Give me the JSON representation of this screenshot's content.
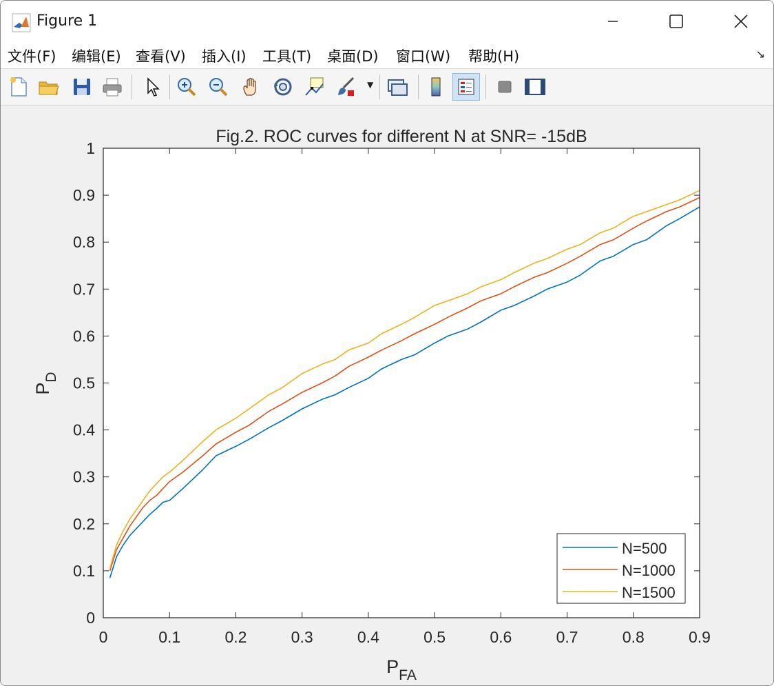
{
  "window": {
    "title": "Figure 1"
  },
  "menu": {
    "items": [
      "文件(F)",
      "编辑(E)",
      "查看(V)",
      "插入(I)",
      "工具(T)",
      "桌面(D)",
      "窗口(W)",
      "帮助(H)"
    ]
  },
  "toolbar": {
    "icons": [
      "new-file-icon",
      "open-folder-icon",
      "save-icon",
      "print-icon",
      "pointer-icon",
      "zoom-in-icon",
      "zoom-out-icon",
      "pan-hand-icon",
      "rotate-3d-icon",
      "data-cursor-icon",
      "brush-icon",
      "link-plot-icon",
      "colorbar-icon",
      "legend-icon",
      "hide-tools-icon",
      "show-tools-icon"
    ],
    "active": "legend-icon"
  },
  "chart_data": {
    "type": "line",
    "title": "Fig.2. ROC curves for different N at SNR= -15dB",
    "xlabel": {
      "main": "P",
      "sub": "FA"
    },
    "ylabel": {
      "main": "P",
      "sub": "D"
    },
    "xlim": [
      0,
      0.9
    ],
    "ylim": [
      0,
      1
    ],
    "xticks": [
      0,
      0.1,
      0.2,
      0.3,
      0.4,
      0.5,
      0.6,
      0.7,
      0.8,
      0.9
    ],
    "xtick_labels": [
      "0",
      "0.1",
      "0.2",
      "0.3",
      "0.4",
      "0.5",
      "0.6",
      "0.7",
      "0.8",
      "0.9"
    ],
    "yticks": [
      0,
      0.1,
      0.2,
      0.3,
      0.4,
      0.5,
      0.6,
      0.7,
      0.8,
      0.9,
      1
    ],
    "ytick_labels": [
      "0",
      "0.1",
      "0.2",
      "0.3",
      "0.4",
      "0.5",
      "0.6",
      "0.7",
      "0.8",
      "0.9",
      "1"
    ],
    "grid": false,
    "legend_position": "bottom-right",
    "x": [
      0.01,
      0.02,
      0.03,
      0.04,
      0.05,
      0.06,
      0.07,
      0.08,
      0.09,
      0.1,
      0.12,
      0.15,
      0.17,
      0.2,
      0.22,
      0.25,
      0.27,
      0.3,
      0.33,
      0.35,
      0.37,
      0.4,
      0.42,
      0.45,
      0.47,
      0.5,
      0.52,
      0.55,
      0.57,
      0.6,
      0.62,
      0.65,
      0.67,
      0.7,
      0.72,
      0.75,
      0.77,
      0.8,
      0.82,
      0.85,
      0.87,
      0.9
    ],
    "series": [
      {
        "name": "N=500",
        "color": "#0072BD",
        "values": [
          0.085,
          0.13,
          0.155,
          0.175,
          0.19,
          0.205,
          0.22,
          0.232,
          0.246,
          0.25,
          0.275,
          0.315,
          0.345,
          0.365,
          0.38,
          0.405,
          0.42,
          0.445,
          0.465,
          0.475,
          0.49,
          0.51,
          0.53,
          0.55,
          0.56,
          0.585,
          0.6,
          0.615,
          0.63,
          0.655,
          0.665,
          0.685,
          0.7,
          0.715,
          0.73,
          0.76,
          0.77,
          0.795,
          0.805,
          0.835,
          0.85,
          0.875
        ]
      },
      {
        "name": "N=1000",
        "color": "#D95319",
        "values": [
          0.1,
          0.145,
          0.17,
          0.195,
          0.215,
          0.235,
          0.25,
          0.26,
          0.275,
          0.29,
          0.31,
          0.345,
          0.37,
          0.395,
          0.41,
          0.44,
          0.455,
          0.48,
          0.5,
          0.515,
          0.535,
          0.555,
          0.57,
          0.59,
          0.605,
          0.625,
          0.64,
          0.66,
          0.675,
          0.69,
          0.705,
          0.725,
          0.735,
          0.755,
          0.77,
          0.795,
          0.805,
          0.83,
          0.845,
          0.865,
          0.875,
          0.895
        ]
      },
      {
        "name": "N=1500",
        "color": "#EDB120",
        "values": [
          0.105,
          0.155,
          0.185,
          0.21,
          0.23,
          0.25,
          0.27,
          0.285,
          0.3,
          0.31,
          0.335,
          0.375,
          0.4,
          0.425,
          0.445,
          0.475,
          0.49,
          0.52,
          0.54,
          0.55,
          0.57,
          0.585,
          0.605,
          0.625,
          0.64,
          0.665,
          0.675,
          0.69,
          0.705,
          0.72,
          0.735,
          0.755,
          0.765,
          0.785,
          0.795,
          0.82,
          0.83,
          0.855,
          0.865,
          0.88,
          0.89,
          0.91
        ]
      }
    ]
  }
}
